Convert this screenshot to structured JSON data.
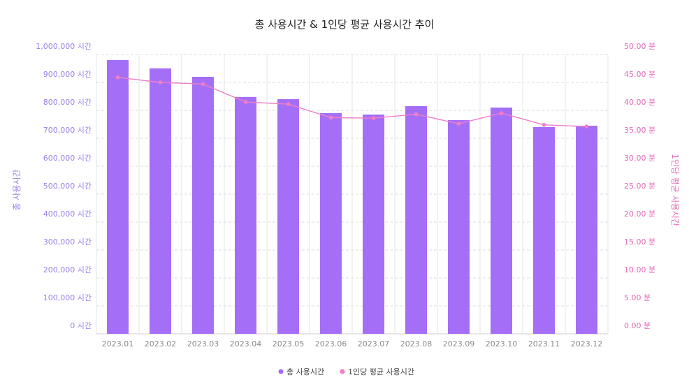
{
  "chart_data": {
    "type": "bar",
    "title": "총 사용시간 & 1인당 평균 사용시간 추이",
    "categories": [
      "2023.01",
      "2023.02",
      "2023.03",
      "2023.04",
      "2023.05",
      "2023.06",
      "2023.07",
      "2023.08",
      "2023.09",
      "2023.10",
      "2023.11",
      "2023.12"
    ],
    "series": [
      {
        "name": "총 사용시간",
        "type": "bar",
        "axis": "left",
        "color": "#a56ef7",
        "values": [
          980000,
          950000,
          920000,
          848000,
          840000,
          790000,
          785000,
          815000,
          765000,
          810000,
          740000,
          745000
        ]
      },
      {
        "name": "1인당 평균 사용시간",
        "type": "line",
        "axis": "right",
        "color": "#ef7fc6",
        "values": [
          45.9,
          45.0,
          44.7,
          41.5,
          41.1,
          38.7,
          38.6,
          39.3,
          37.6,
          39.5,
          37.4,
          37.1
        ]
      }
    ],
    "y_left": {
      "label": "총 사용시간",
      "min": 0,
      "max": 1000000,
      "step": 100000,
      "tick_labels": [
        "0 시간",
        "100,000 시간",
        "200,000 시간",
        "300,000 시간",
        "400,000 시간",
        "500,000 시간",
        "600,000 시간",
        "700,000 시간",
        "800,000 시간",
        "900,000 시간",
        "1,000,000 시간"
      ]
    },
    "y_right": {
      "label": "1인당 평균 사용시간",
      "min": 0,
      "max": 50,
      "step": 5,
      "tick_labels": [
        "0.00 분",
        "5.00 분",
        "10.00 분",
        "15.00 분",
        "20.00 분",
        "25.00 분",
        "30.00 분",
        "35.00 분",
        "40.00 분",
        "45.00 분",
        "50.00 분"
      ]
    },
    "grid": true,
    "legend_position": "bottom"
  }
}
